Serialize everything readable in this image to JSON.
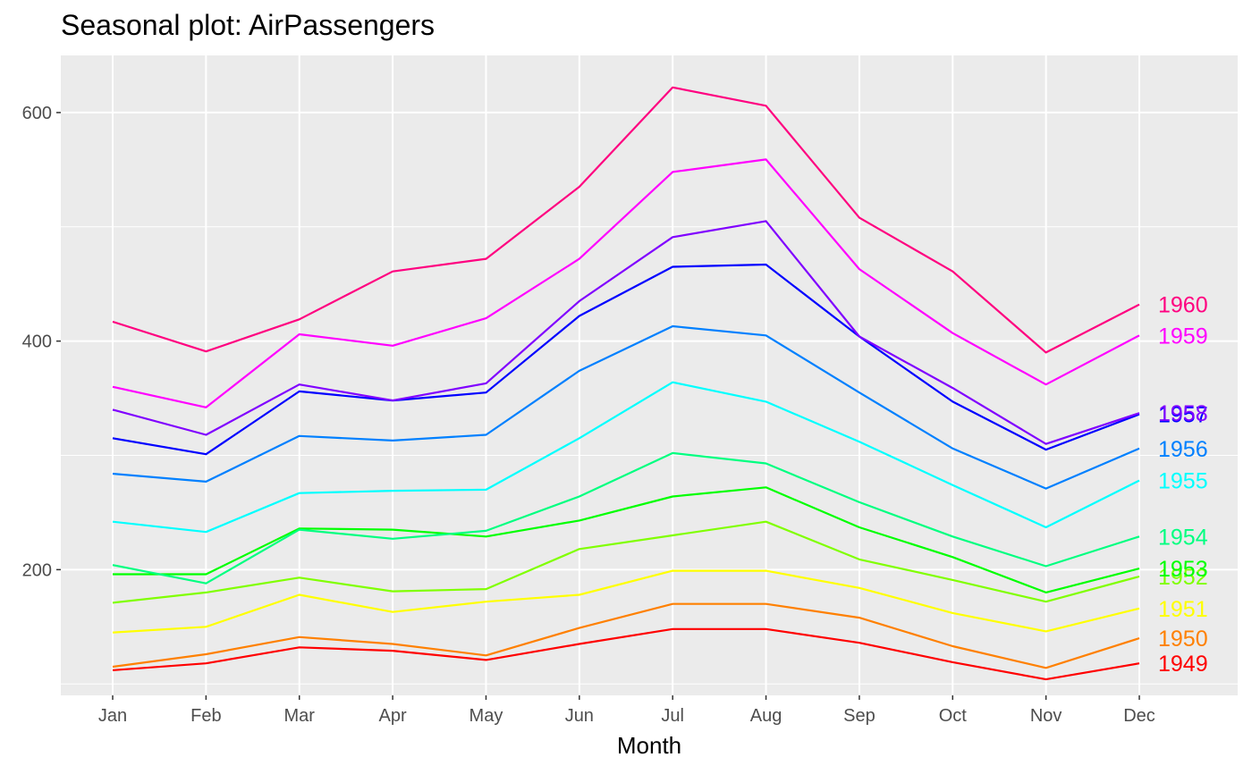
{
  "chart_data": {
    "type": "line",
    "title": "Seasonal plot: AirPassengers",
    "xlabel": "Month",
    "ylabel": "",
    "categories": [
      "Jan",
      "Feb",
      "Mar",
      "Apr",
      "May",
      "Jun",
      "Jul",
      "Aug",
      "Sep",
      "Oct",
      "Nov",
      "Dec"
    ],
    "ylim": [
      90,
      650
    ],
    "yticks": [
      200,
      400,
      600
    ],
    "grid": true,
    "legend": "none (series labels at line ends)",
    "series": [
      {
        "name": "1949",
        "color": "#FF0000",
        "values": [
          112,
          118,
          132,
          129,
          121,
          135,
          148,
          148,
          136,
          119,
          104,
          118
        ]
      },
      {
        "name": "1950",
        "color": "#FF8000",
        "values": [
          115,
          126,
          141,
          135,
          125,
          149,
          170,
          170,
          158,
          133,
          114,
          140
        ]
      },
      {
        "name": "1951",
        "color": "#FFFF00",
        "values": [
          145,
          150,
          178,
          163,
          172,
          178,
          199,
          199,
          184,
          162,
          146,
          166
        ]
      },
      {
        "name": "1952",
        "color": "#80FF00",
        "values": [
          171,
          180,
          193,
          181,
          183,
          218,
          230,
          242,
          209,
          191,
          172,
          194
        ]
      },
      {
        "name": "1953",
        "color": "#00FF00",
        "values": [
          196,
          196,
          236,
          235,
          229,
          243,
          264,
          272,
          237,
          211,
          180,
          201
        ]
      },
      {
        "name": "1954",
        "color": "#00FF80",
        "values": [
          204,
          188,
          235,
          227,
          234,
          264,
          302,
          293,
          259,
          229,
          203,
          229
        ]
      },
      {
        "name": "1955",
        "color": "#00FFFF",
        "values": [
          242,
          233,
          267,
          269,
          270,
          315,
          364,
          347,
          312,
          274,
          237,
          278
        ]
      },
      {
        "name": "1956",
        "color": "#0080FF",
        "values": [
          284,
          277,
          317,
          313,
          318,
          374,
          413,
          405,
          355,
          306,
          271,
          306
        ]
      },
      {
        "name": "1957",
        "color": "#0000FF",
        "values": [
          315,
          301,
          356,
          348,
          355,
          422,
          465,
          467,
          404,
          347,
          305,
          336
        ]
      },
      {
        "name": "1958",
        "color": "#8000FF",
        "values": [
          340,
          318,
          362,
          348,
          363,
          435,
          491,
          505,
          404,
          359,
          310,
          337
        ]
      },
      {
        "name": "1959",
        "color": "#FF00FF",
        "values": [
          360,
          342,
          406,
          396,
          420,
          472,
          548,
          559,
          463,
          407,
          362,
          405
        ]
      },
      {
        "name": "1960",
        "color": "#FF0080",
        "values": [
          417,
          391,
          419,
          461,
          472,
          535,
          622,
          606,
          508,
          461,
          390,
          432
        ]
      }
    ]
  }
}
